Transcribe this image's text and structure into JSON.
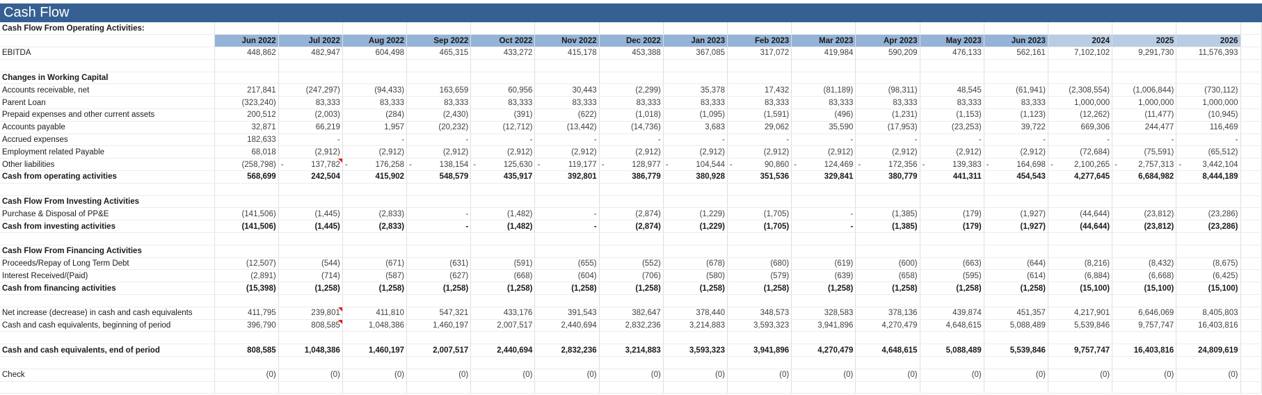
{
  "title": "Cash Flow",
  "subtitle": "Cash Flow From Operating Activities:",
  "columns": [
    "Jun 2022",
    "Jul 2022",
    "Aug 2022",
    "Sep 2022",
    "Oct 2022",
    "Nov 2022",
    "Dec 2022",
    "Jan 2023",
    "Feb 2023",
    "Mar 2023",
    "Apr 2023",
    "May 2023",
    "Jun 2023",
    "2024",
    "2025",
    "2026"
  ],
  "sections": [
    {
      "rows": [
        {
          "label": "EBITDA",
          "values": [
            "448,862",
            "482,947",
            "604,498",
            "465,315",
            "433,272",
            "415,178",
            "453,388",
            "367,085",
            "317,072",
            "419,984",
            "590,209",
            "476,133",
            "562,161",
            "7,102,102",
            "9,291,730",
            "11,576,393"
          ]
        }
      ]
    },
    {
      "heading": "Changes in Working Capital",
      "rows": [
        {
          "label": "Accounts receivable, net",
          "values": [
            "217,841",
            "(247,297)",
            "(94,433)",
            "163,659",
            "60,956",
            "30,443",
            "(2,299)",
            "35,378",
            "17,432",
            "(81,189)",
            "(98,311)",
            "48,545",
            "(61,941)",
            "(2,308,554)",
            "(1,006,844)",
            "(730,112)"
          ]
        },
        {
          "label": "Parent Loan",
          "values": [
            "(323,240)",
            "83,333",
            "83,333",
            "83,333",
            "83,333",
            "83,333",
            "83,333",
            "83,333",
            "83,333",
            "83,333",
            "83,333",
            "83,333",
            "83,333",
            "1,000,000",
            "1,000,000",
            "1,000,000"
          ]
        },
        {
          "label": "Prepaid expenses and other current assets",
          "values": [
            "200,512",
            "(2,003)",
            "(284)",
            "(2,430)",
            "(391)",
            "(622)",
            "(1,018)",
            "(1,095)",
            "(1,591)",
            "(496)",
            "(1,231)",
            "(1,153)",
            "(1,123)",
            "(12,262)",
            "(11,477)",
            "(10,945)"
          ]
        },
        {
          "label": "Accounts payable",
          "values": [
            "32,871",
            "66,219",
            "1,957",
            "(20,232)",
            "(12,712)",
            "(13,442)",
            "(14,736)",
            "3,683",
            "29,062",
            "35,590",
            "(17,953)",
            "(23,253)",
            "39,722",
            "669,306",
            "244,477",
            "116,469"
          ]
        },
        {
          "label": "Accrued expenses",
          "values": [
            "182,633",
            "-",
            "-",
            "-",
            "-",
            "-",
            "-",
            "-",
            "-",
            "-",
            "-",
            "-",
            "-",
            "-",
            "-",
            "-"
          ]
        },
        {
          "label": "Employment related Payable",
          "values": [
            "68,018",
            "(2,912)",
            "(2,912)",
            "(2,912)",
            "(2,912)",
            "(2,912)",
            "(2,912)",
            "(2,912)",
            "(2,912)",
            "(2,912)",
            "(2,912)",
            "(2,912)",
            "(2,912)",
            "(72,684)",
            "(75,591)",
            "(65,512)"
          ]
        },
        {
          "label": "Other liabilities",
          "values": [
            "(258,798)",
            "- 137,782",
            "- 176,258",
            "- 138,154",
            "- 125,630",
            "- 119,177",
            "- 128,977",
            "- 104,544",
            "- 90,860",
            "- 124,469",
            "- 172,356",
            "- 139,383",
            "- 164,698",
            "- 2,100,265",
            "- 2,757,313",
            "- 3,442,104"
          ]
        },
        {
          "label": "Cash from operating activities",
          "bold": true,
          "values": [
            "568,699",
            "242,504",
            "415,902",
            "548,579",
            "435,917",
            "392,801",
            "386,779",
            "380,928",
            "351,536",
            "329,841",
            "380,779",
            "441,311",
            "454,543",
            "4,277,645",
            "6,684,982",
            "8,444,189"
          ]
        }
      ]
    },
    {
      "heading": "Cash Flow From Investing Activities",
      "rows": [
        {
          "label": "Purchase & Disposal of PP&E",
          "values": [
            "(141,506)",
            "(1,445)",
            "(2,833)",
            "-",
            "(1,482)",
            "-",
            "(2,874)",
            "(1,229)",
            "(1,705)",
            "-",
            "(1,385)",
            "(179)",
            "(1,927)",
            "(44,644)",
            "(23,812)",
            "(23,286)"
          ]
        },
        {
          "label": "Cash from investing activities",
          "bold": true,
          "values": [
            "(141,506)",
            "(1,445)",
            "(2,833)",
            "-",
            "(1,482)",
            "-",
            "(2,874)",
            "(1,229)",
            "(1,705)",
            "-",
            "(1,385)",
            "(179)",
            "(1,927)",
            "(44,644)",
            "(23,812)",
            "(23,286)"
          ]
        }
      ]
    },
    {
      "heading": "Cash Flow From Financing Activities",
      "rows": [
        {
          "label": "Proceeds/Repay of Long Term Debt",
          "values": [
            "(12,507)",
            "(544)",
            "(671)",
            "(631)",
            "(591)",
            "(655)",
            "(552)",
            "(678)",
            "(680)",
            "(619)",
            "(600)",
            "(663)",
            "(644)",
            "(8,216)",
            "(8,432)",
            "(8,675)"
          ]
        },
        {
          "label": "Interest Received/(Paid)",
          "values": [
            "(2,891)",
            "(714)",
            "(587)",
            "(627)",
            "(668)",
            "(604)",
            "(706)",
            "(580)",
            "(579)",
            "(639)",
            "(658)",
            "(595)",
            "(614)",
            "(6,884)",
            "(6,668)",
            "(6,425)"
          ]
        },
        {
          "label": "Cash from financing activities",
          "bold": true,
          "values": [
            "(15,398)",
            "(1,258)",
            "(1,258)",
            "(1,258)",
            "(1,258)",
            "(1,258)",
            "(1,258)",
            "(1,258)",
            "(1,258)",
            "(1,258)",
            "(1,258)",
            "(1,258)",
            "(1,258)",
            "(15,100)",
            "(15,100)",
            "(15,100)"
          ]
        }
      ]
    },
    {
      "rows": [
        {
          "label": "Net increase (decrease) in cash and cash equivalents",
          "values": [
            "411,795",
            "239,801",
            "411,810",
            "547,321",
            "433,176",
            "391,543",
            "382,647",
            "378,440",
            "348,573",
            "328,583",
            "378,136",
            "439,874",
            "451,357",
            "4,217,901",
            "6,646,069",
            "8,405,803"
          ]
        },
        {
          "label": "Cash and cash equivalents, beginning of period",
          "values": [
            "396,790",
            "808,585",
            "1,048,386",
            "1,460,197",
            "2,007,517",
            "2,440,694",
            "2,832,236",
            "3,214,883",
            "3,593,323",
            "3,941,896",
            "4,270,479",
            "4,648,615",
            "5,088,489",
            "5,539,846",
            "9,757,747",
            "16,403,816"
          ]
        }
      ]
    },
    {
      "rows": [
        {
          "label": "Cash and cash equivalents, end of period",
          "bold": true,
          "values": [
            "808,585",
            "1,048,386",
            "1,460,197",
            "2,007,517",
            "2,440,694",
            "2,832,236",
            "3,214,883",
            "3,593,323",
            "3,941,896",
            "4,270,479",
            "4,648,615",
            "5,088,489",
            "5,539,846",
            "9,757,747",
            "16,403,816",
            "24,809,619"
          ]
        }
      ]
    },
    {
      "rows": [
        {
          "label": "Check",
          "values": [
            "(0)",
            "(0)",
            "(0)",
            "(0)",
            "(0)",
            "(0)",
            "(0)",
            "(0)",
            "(0)",
            "(0)",
            "(0)",
            "(0)",
            "(0)",
            "(0)",
            "(0)",
            "(0)"
          ]
        }
      ]
    }
  ]
}
